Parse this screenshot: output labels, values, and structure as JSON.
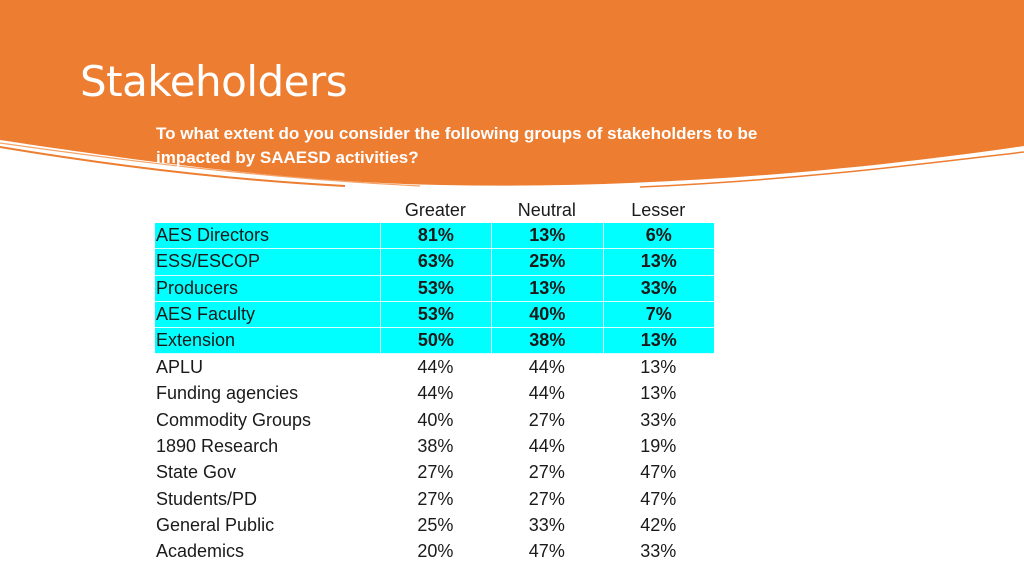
{
  "slide": {
    "title": "Stakeholders",
    "question": "To what extent do you consider the following groups of stakeholders to be impacted by SAAESD activities?"
  },
  "colors": {
    "header_orange": "#ED7D31",
    "highlight_cyan": "#00FFFF",
    "text": "#1A1A1A"
  },
  "table": {
    "columns": [
      "Greater",
      "Neutral",
      "Lesser"
    ],
    "rows": [
      {
        "label": "AES Directors",
        "values": [
          "81%",
          "13%",
          "6%"
        ],
        "highlighted": true
      },
      {
        "label": "ESS/ESCOP",
        "values": [
          "63%",
          "25%",
          "13%"
        ],
        "highlighted": true
      },
      {
        "label": "Producers",
        "values": [
          "53%",
          "13%",
          "33%"
        ],
        "highlighted": true
      },
      {
        "label": "AES Faculty",
        "values": [
          "53%",
          "40%",
          "7%"
        ],
        "highlighted": true
      },
      {
        "label": "Extension",
        "values": [
          "50%",
          "38%",
          "13%"
        ],
        "highlighted": true
      },
      {
        "label": "APLU",
        "values": [
          "44%",
          "44%",
          "13%"
        ],
        "highlighted": false
      },
      {
        "label": "Funding agencies",
        "values": [
          "44%",
          "44%",
          "13%"
        ],
        "highlighted": false
      },
      {
        "label": "Commodity Groups",
        "values": [
          "40%",
          "27%",
          "33%"
        ],
        "highlighted": false
      },
      {
        "label": "1890 Research",
        "values": [
          "38%",
          "44%",
          "19%"
        ],
        "highlighted": false
      },
      {
        "label": "State Gov",
        "values": [
          "27%",
          "27%",
          "47%"
        ],
        "highlighted": false
      },
      {
        "label": "Students/PD",
        "values": [
          "27%",
          "27%",
          "47%"
        ],
        "highlighted": false
      },
      {
        "label": "General Public",
        "values": [
          "25%",
          "33%",
          "42%"
        ],
        "highlighted": false
      },
      {
        "label": "Academics",
        "values": [
          "20%",
          "47%",
          "33%"
        ],
        "highlighted": false
      }
    ]
  }
}
